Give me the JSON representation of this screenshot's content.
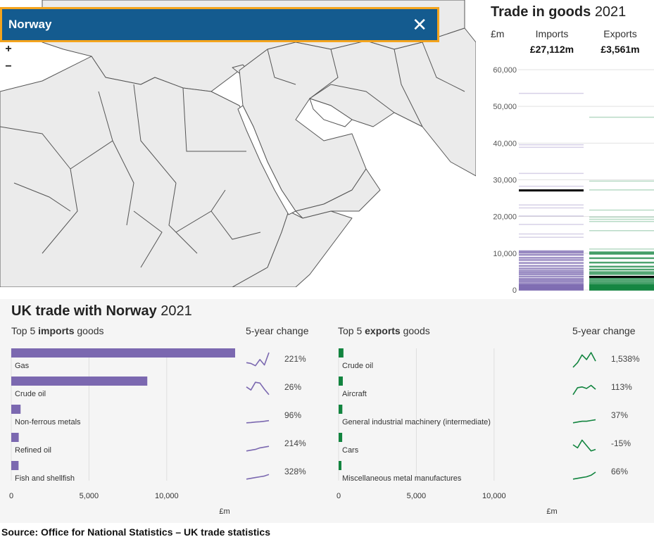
{
  "map": {
    "country": "Norway",
    "zoom_in": "+",
    "zoom_out": "−",
    "close_icon": "close-icon",
    "colors": {
      "land": "#ebebeb",
      "border": "#555555",
      "water": "#ffffff",
      "banner": "#145b8f",
      "banner_border": "#f4a41d"
    }
  },
  "trade_panel": {
    "title_bold": "Trade in goods",
    "title_year": "2021",
    "unit": "£m",
    "imports_label": "Imports",
    "exports_label": "Exports",
    "imports_total": "£27,112m",
    "exports_total": "£3,561m"
  },
  "chart_data": [
    {
      "type": "strip",
      "ylim": [
        0,
        60000
      ],
      "yticks": [
        0,
        10000,
        20000,
        30000,
        40000,
        50000,
        60000
      ],
      "ytick_labels": [
        "0",
        "10,000",
        "20,000",
        "30,000",
        "40,000",
        "50,000",
        "60,000"
      ],
      "highlight": {
        "imports": 27112,
        "exports": 3561
      },
      "imports_values": [
        53500,
        39500,
        38800,
        31700,
        28200,
        23100,
        22300,
        20100,
        17800,
        15200,
        14300,
        10600,
        10200,
        9600,
        8800,
        8200,
        7400,
        6600,
        5900,
        5300,
        4800,
        4300,
        3700,
        3100,
        2700,
        2300,
        1800,
        1400,
        1000,
        600,
        300
      ],
      "exports_values": [
        47000,
        29600,
        27200,
        21700,
        19800,
        19200,
        18600,
        16100,
        11100,
        10300,
        9900,
        8700,
        7500,
        6400,
        5600,
        4900,
        4400,
        3100,
        2600,
        2100,
        1700,
        1300,
        900,
        600,
        300
      ],
      "colors": {
        "imports": "#7b68b0",
        "exports": "#12843f",
        "highlight": "#000000"
      }
    },
    {
      "type": "bar",
      "title": "Top 5 imports goods",
      "categories": [
        "Gas",
        "Crude oil",
        "Non-ferrous metals",
        "Refined oil",
        "Fish and shellfish"
      ],
      "values": [
        14400,
        8750,
        600,
        480,
        470
      ],
      "xlim": [
        0,
        14400
      ],
      "xticks": [
        0,
        5000,
        10000
      ],
      "xtick_labels": [
        "0",
        "5,000",
        "10,000"
      ],
      "xlabel": "£m",
      "change": [
        "221%",
        "26%",
        "96%",
        "214%",
        "328%"
      ],
      "sparklines": [
        [
          0.35,
          0.3,
          0.15,
          0.55,
          0.2,
          1.0
        ],
        [
          0.6,
          0.4,
          0.9,
          0.85,
          0.45,
          0.1
        ],
        [
          0.1,
          0.12,
          0.15,
          0.17,
          0.2,
          0.24
        ],
        [
          0.1,
          0.15,
          0.2,
          0.3,
          0.35,
          0.4
        ],
        [
          0.1,
          0.15,
          0.2,
          0.25,
          0.3,
          0.4
        ]
      ],
      "color": "#7b68b0"
    },
    {
      "type": "bar",
      "title": "Top 5 exports goods",
      "categories": [
        "Crude oil",
        "Aircraft",
        "General industrial machinery (intermediate)",
        "Cars",
        "Miscellaneous metal manufactures"
      ],
      "values": [
        310,
        270,
        240,
        230,
        180
      ],
      "xlim": [
        0,
        14400
      ],
      "xticks": [
        0,
        5000,
        10000
      ],
      "xtick_labels": [
        "0",
        "5,000",
        "10,000"
      ],
      "xlabel": "£m",
      "change": [
        "1,538%",
        "113%",
        "37%",
        "-15%",
        "66%"
      ],
      "sparklines": [
        [
          0.05,
          0.35,
          0.85,
          0.55,
          1.0,
          0.45
        ],
        [
          0.1,
          0.55,
          0.6,
          0.5,
          0.7,
          0.45
        ],
        [
          0.1,
          0.15,
          0.2,
          0.2,
          0.25,
          0.3
        ],
        [
          0.5,
          0.3,
          0.8,
          0.45,
          0.1,
          0.2
        ],
        [
          0.1,
          0.15,
          0.2,
          0.25,
          0.35,
          0.55
        ]
      ],
      "color": "#12843f"
    }
  ],
  "bottom": {
    "title_bold": "UK trade with Norway",
    "title_year": "2021",
    "imports_head_pre": "Top 5",
    "imports_head_bold": "imports",
    "imports_head_post": "goods",
    "exports_head_pre": "Top 5",
    "exports_head_bold": "exports",
    "exports_head_post": "goods",
    "change_head": "5-year change"
  },
  "source": "Source: Office for National Statistics – UK trade statistics"
}
